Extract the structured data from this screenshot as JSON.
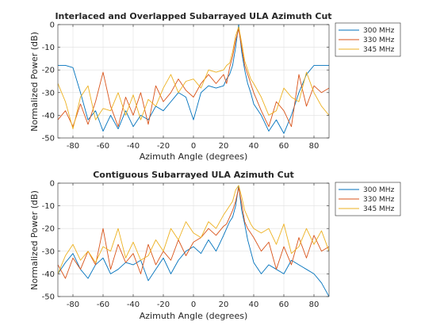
{
  "chart_data": [
    {
      "type": "line",
      "title": "Interlaced and Overlapped Subarrayed ULA Azimuth Cut",
      "xlabel": "Azimuth Angle (degrees)",
      "ylabel": "Normalized Power (dB)",
      "xlim": [
        -90,
        90
      ],
      "ylim": [
        -50,
        0
      ],
      "xticks": [
        -80,
        -60,
        -40,
        -20,
        0,
        20,
        40,
        60,
        80
      ],
      "yticks": [
        0,
        -10,
        -20,
        -30,
        -40,
        -50
      ],
      "grid": true,
      "legend_position": "outside-top-right",
      "series": [
        {
          "name": "300 MHz",
          "color": "#0072BD",
          "x": [
            -90,
            -85,
            -80,
            -75,
            -70,
            -65,
            -60,
            -55,
            -50,
            -45,
            -40,
            -35,
            -30,
            -25,
            -20,
            -15,
            -10,
            -5,
            0,
            5,
            10,
            15,
            20,
            22,
            24,
            26,
            28,
            30,
            32,
            34,
            36,
            38,
            40,
            45,
            50,
            55,
            60,
            65,
            70,
            75,
            80,
            85,
            90
          ],
          "y": [
            -18,
            -18,
            -19,
            -30,
            -42,
            -38,
            -47,
            -40,
            -46,
            -38,
            -45,
            -40,
            -42,
            -36,
            -38,
            -34,
            -30,
            -32,
            -42,
            -30,
            -27,
            -28,
            -27,
            -24,
            -22,
            -18,
            -10,
            0,
            -12,
            -20,
            -26,
            -30,
            -35,
            -40,
            -47,
            -42,
            -48,
            -40,
            -30,
            -22,
            -18,
            -18,
            -18
          ]
        },
        {
          "name": "330 MHz",
          "color": "#D95319",
          "x": [
            -90,
            -85,
            -80,
            -75,
            -70,
            -65,
            -60,
            -55,
            -50,
            -45,
            -40,
            -35,
            -30,
            -25,
            -20,
            -15,
            -10,
            -5,
            0,
            5,
            10,
            15,
            20,
            22,
            24,
            26,
            28,
            30,
            32,
            34,
            36,
            38,
            40,
            45,
            50,
            55,
            60,
            65,
            70,
            75,
            80,
            85,
            90
          ],
          "y": [
            -42,
            -38,
            -45,
            -35,
            -44,
            -34,
            -21,
            -36,
            -45,
            -32,
            -40,
            -30,
            -44,
            -27,
            -34,
            -30,
            -24,
            -29,
            -32,
            -26,
            -22,
            -26,
            -22,
            -26,
            -19,
            -14,
            -7,
            -2,
            -10,
            -18,
            -22,
            -26,
            -30,
            -38,
            -45,
            -34,
            -38,
            -45,
            -22,
            -36,
            -27,
            -30,
            -28
          ]
        },
        {
          "name": "345 MHz",
          "color": "#EDB120",
          "x": [
            -90,
            -85,
            -80,
            -75,
            -70,
            -65,
            -60,
            -55,
            -50,
            -45,
            -40,
            -35,
            -30,
            -25,
            -20,
            -15,
            -10,
            -5,
            0,
            5,
            10,
            15,
            20,
            22,
            24,
            26,
            28,
            30,
            32,
            34,
            36,
            38,
            40,
            45,
            50,
            55,
            60,
            65,
            70,
            75,
            80,
            85,
            90
          ],
          "y": [
            -26,
            -34,
            -46,
            -32,
            -27,
            -42,
            -37,
            -38,
            -30,
            -40,
            -31,
            -42,
            -33,
            -36,
            -28,
            -22,
            -30,
            -25,
            -24,
            -28,
            -20,
            -21,
            -20,
            -18,
            -17,
            -12,
            -5,
            -1,
            -8,
            -16,
            -20,
            -24,
            -26,
            -32,
            -40,
            -38,
            -28,
            -32,
            -34,
            -21,
            -30,
            -36,
            -40
          ]
        }
      ]
    },
    {
      "type": "line",
      "title": "Contiguous Subarrayed ULA Azimuth Cut",
      "xlabel": "Azimuth Angle (degrees)",
      "ylabel": "Normalized Power (dB)",
      "xlim": [
        -90,
        90
      ],
      "ylim": [
        -50,
        0
      ],
      "xticks": [
        -80,
        -60,
        -40,
        -20,
        0,
        20,
        40,
        60,
        80
      ],
      "yticks": [
        0,
        -10,
        -20,
        -30,
        -40,
        -50
      ],
      "grid": true,
      "legend_position": "outside-top-right",
      "series": [
        {
          "name": "300 MHz",
          "color": "#0072BD",
          "x": [
            -90,
            -85,
            -80,
            -75,
            -70,
            -65,
            -60,
            -55,
            -50,
            -45,
            -40,
            -35,
            -30,
            -25,
            -20,
            -15,
            -10,
            -5,
            0,
            5,
            10,
            15,
            20,
            22,
            24,
            26,
            28,
            30,
            32,
            34,
            36,
            38,
            40,
            45,
            50,
            55,
            60,
            65,
            70,
            75,
            80,
            85,
            90
          ],
          "y": [
            -40,
            -35,
            -31,
            -38,
            -42,
            -36,
            -33,
            -40,
            -38,
            -35,
            -36,
            -34,
            -43,
            -38,
            -33,
            -40,
            -34,
            -30,
            -28,
            -31,
            -25,
            -30,
            -23,
            -20,
            -17,
            -15,
            -10,
            -1,
            -12,
            -18,
            -25,
            -30,
            -35,
            -40,
            -36,
            -38,
            -40,
            -34,
            -36,
            -38,
            -40,
            -44,
            -50
          ]
        },
        {
          "name": "330 MHz",
          "color": "#D95319",
          "x": [
            -90,
            -85,
            -80,
            -75,
            -70,
            -65,
            -60,
            -55,
            -50,
            -45,
            -40,
            -35,
            -30,
            -25,
            -20,
            -15,
            -10,
            -5,
            0,
            5,
            10,
            15,
            20,
            22,
            24,
            26,
            28,
            30,
            32,
            34,
            36,
            38,
            40,
            45,
            50,
            55,
            60,
            65,
            70,
            75,
            80,
            85,
            90
          ],
          "y": [
            -36,
            -42,
            -33,
            -38,
            -30,
            -36,
            -20,
            -38,
            -27,
            -35,
            -31,
            -40,
            -27,
            -36,
            -30,
            -34,
            -25,
            -32,
            -26,
            -24,
            -20,
            -23,
            -19,
            -18,
            -15,
            -12,
            -8,
            -2,
            -9,
            -17,
            -20,
            -22,
            -24,
            -30,
            -26,
            -38,
            -28,
            -36,
            -24,
            -33,
            -23,
            -30,
            -28
          ]
        },
        {
          "name": "345 MHz",
          "color": "#EDB120",
          "x": [
            -90,
            -85,
            -80,
            -75,
            -70,
            -65,
            -60,
            -55,
            -50,
            -45,
            -40,
            -35,
            -30,
            -25,
            -20,
            -15,
            -10,
            -5,
            0,
            5,
            10,
            15,
            20,
            22,
            24,
            26,
            28,
            30,
            32,
            34,
            36,
            38,
            40,
            45,
            50,
            55,
            60,
            65,
            70,
            75,
            80,
            85,
            90
          ],
          "y": [
            -40,
            -32,
            -27,
            -34,
            -30,
            -35,
            -28,
            -30,
            -20,
            -33,
            -26,
            -34,
            -32,
            -25,
            -30,
            -20,
            -25,
            -17,
            -22,
            -24,
            -17,
            -20,
            -14,
            -12,
            -10,
            -8,
            -3,
            -1,
            -6,
            -12,
            -15,
            -18,
            -20,
            -22,
            -20,
            -27,
            -18,
            -31,
            -28,
            -20,
            -27,
            -21,
            -30
          ]
        }
      ]
    }
  ]
}
